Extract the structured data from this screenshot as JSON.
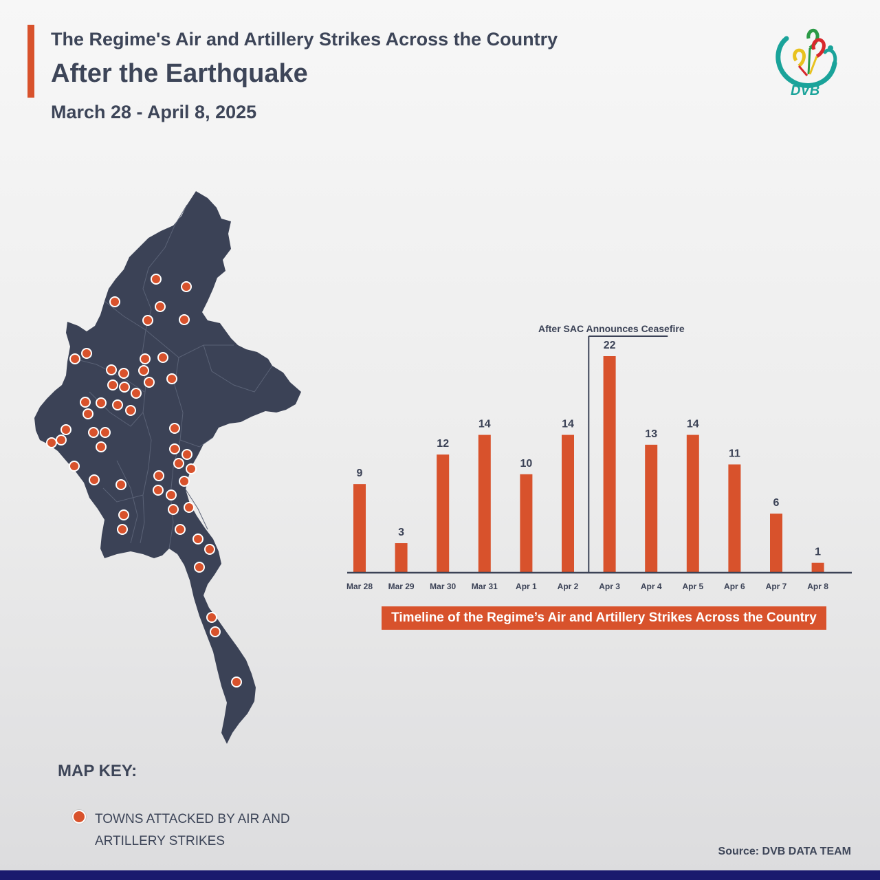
{
  "header": {
    "line1": "The Regime's Air and Artillery Strikes Across the Country",
    "line2": "After the Earthquake",
    "date_range": "March 28 - April 8, 2025"
  },
  "logo": {
    "text": "DVB",
    "colors": [
      "#1aa39a",
      "#e8c21e",
      "#d8282c",
      "#2b9a46"
    ]
  },
  "map": {
    "fill_color": "#3b4256",
    "marker_color": "#d8522c",
    "marker_count": 56
  },
  "map_key": {
    "title": "MAP KEY:",
    "label": "TOWNS ATTACKED BY AIR AND ARTILLERY STRIKES"
  },
  "chart_data": {
    "type": "bar",
    "categories": [
      "Mar 28",
      "Mar 29",
      "Mar 30",
      "Mar 31",
      "Apr 1",
      "Apr 2",
      "Apr 3",
      "Apr 4",
      "Apr 5",
      "Apr 6",
      "Apr 7",
      "Apr 8"
    ],
    "values": [
      9,
      3,
      12,
      14,
      10,
      14,
      22,
      13,
      14,
      11,
      6,
      1
    ],
    "title": "Timeline of the Regime’s Air and Artillery Strikes Across the Country",
    "annotation": "After SAC Announces Ceasefire",
    "annotation_before_category": "Apr 3",
    "bar_color": "#d8522c",
    "ylim": [
      0,
      22
    ],
    "grid": false
  },
  "footer": {
    "source": "Source: DVB DATA TEAM"
  }
}
